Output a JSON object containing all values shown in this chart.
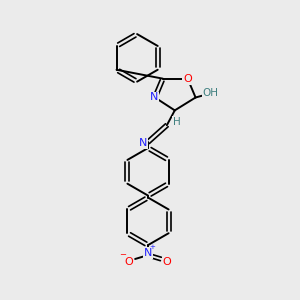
{
  "bg_color": "#ebebeb",
  "atom_colors": {
    "C": "#000000",
    "N": "#2020ff",
    "O": "#ff0000",
    "H": "#408080"
  },
  "bond_color": "#000000",
  "figsize": [
    3.0,
    3.0
  ],
  "dpi": 100
}
